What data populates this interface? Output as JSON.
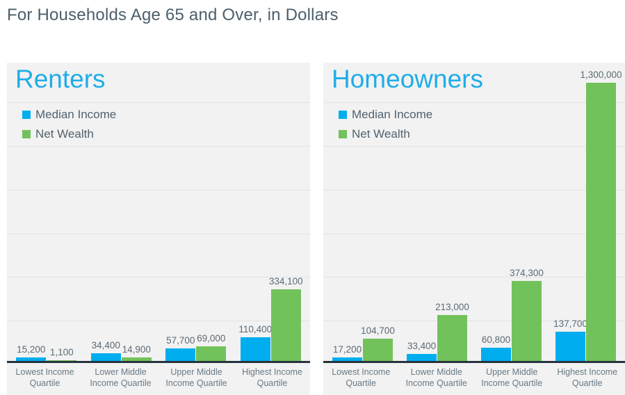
{
  "page_title": "For Households Age 65 and Over, in Dollars",
  "colors": {
    "accent_blue": "#00ADEE",
    "accent_green": "#72C25B",
    "panel_background": "#F2F2F2",
    "axis_line": "#28333E",
    "chart_title_blue": "#1FADE8",
    "text_slate": "#51616D"
  },
  "chart_data": [
    {
      "type": "bar",
      "title": "Renters",
      "categories": [
        "Lowest Income Quartile",
        "Lower Middle Income Quartile",
        "Upper Middle Income Quartile",
        "Highest Income Quartile"
      ],
      "series": [
        {
          "name": "Median Income",
          "color": "#00ADEE",
          "values": [
            15200,
            34400,
            57700,
            110400
          ],
          "labels": [
            "15,200",
            "34,400",
            "57,700",
            "110,400"
          ]
        },
        {
          "name": "Net Wealth",
          "color": "#72C25B",
          "values": [
            1100,
            14900,
            69000,
            334100
          ],
          "labels": [
            "1,100",
            "14,900",
            "69,000",
            "334,100"
          ]
        }
      ],
      "ylim": [
        0,
        1300000
      ],
      "gridline_interval": 200000,
      "grid": true,
      "yaxis_tick_labels": false,
      "legend_position": "top-left",
      "data_labels": true
    },
    {
      "type": "bar",
      "title": "Homeowners",
      "categories": [
        "Lowest Income Quartile",
        "Lower Middle Income Quartile",
        "Upper Middle Income Quartile",
        "Highest Income Quartile"
      ],
      "series": [
        {
          "name": "Median Income",
          "color": "#00ADEE",
          "values": [
            17200,
            33400,
            60800,
            137700
          ],
          "labels": [
            "17,200",
            "33,400",
            "60,800",
            "137,700"
          ]
        },
        {
          "name": "Net Wealth",
          "color": "#72C25B",
          "values": [
            104700,
            213000,
            374300,
            1300000
          ],
          "labels": [
            "104,700",
            "213,000",
            "374,300",
            "1,300,000"
          ]
        }
      ],
      "ylim": [
        0,
        1300000
      ],
      "gridline_interval": 200000,
      "grid": true,
      "yaxis_tick_labels": false,
      "legend_position": "top-left",
      "data_labels": true
    }
  ]
}
